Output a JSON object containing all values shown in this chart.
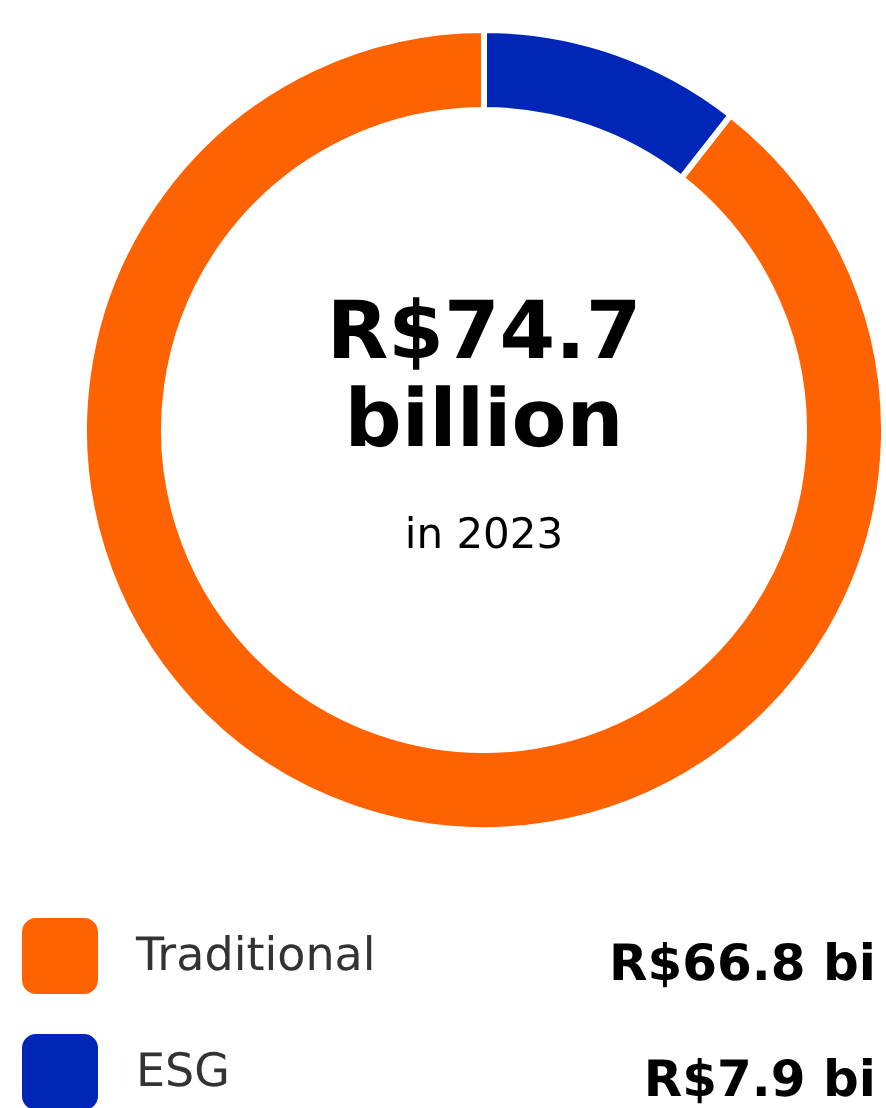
{
  "chart_data": {
    "type": "donut",
    "title": "R$74.7 billion",
    "subtitle": "in 2023",
    "categories": [
      "Traditional",
      "ESG"
    ],
    "values": [
      66.8,
      7.9
    ],
    "colors": [
      "#ff6200",
      "#0026b8"
    ],
    "value_labels": [
      "R$66.8 bi",
      "R$7.9 bi"
    ],
    "legend": "bottom"
  }
}
